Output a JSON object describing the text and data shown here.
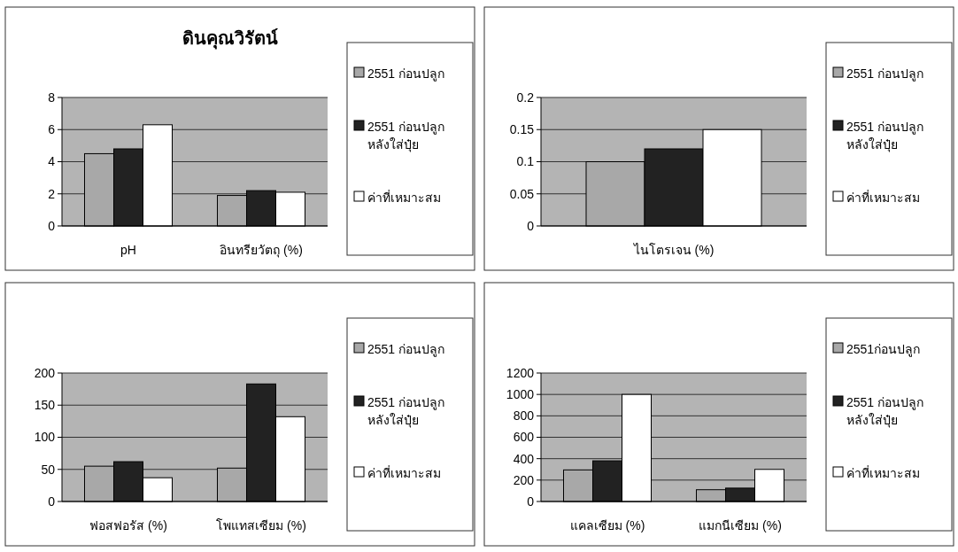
{
  "chart_data": [
    {
      "type": "bar",
      "title": "ดินคุณวิรัตน์",
      "categories": [
        "pH",
        "อินทรียวัตถุ (%)"
      ],
      "series": [
        {
          "name": "2551 ก่อนปลูก",
          "color": "#a8a8a8",
          "values": [
            4.5,
            1.9
          ]
        },
        {
          "name": "2551 ก่อนปลูก หลังใส่ปุ๋ย",
          "color": "#222222",
          "values": [
            4.8,
            2.2
          ]
        },
        {
          "name": "ค่าที่เหมาะสม",
          "color": "#ffffff",
          "values": [
            6.3,
            2.1
          ]
        }
      ],
      "ylim": [
        0,
        8
      ],
      "yticks": [
        0,
        2,
        4,
        6,
        8
      ],
      "grid": "y",
      "legend": "right"
    },
    {
      "type": "bar",
      "categories": [
        "ไนโตรเจน (%)"
      ],
      "series": [
        {
          "name": "2551 ก่อนปลูก",
          "color": "#a8a8a8",
          "values": [
            0.1
          ]
        },
        {
          "name": "2551 ก่อนปลูก หลังใส่ปุ๋ย",
          "color": "#222222",
          "values": [
            0.12
          ]
        },
        {
          "name": "ค่าที่เหมาะสม",
          "color": "#ffffff",
          "values": [
            0.15
          ]
        }
      ],
      "ylim": [
        0,
        0.2
      ],
      "yticks": [
        0,
        0.05,
        0.1,
        0.15,
        0.2
      ],
      "grid": "y",
      "legend": "right"
    },
    {
      "type": "bar",
      "categories": [
        "ฟอสฟอรัส (%)",
        "โพแทสเซียม (%)"
      ],
      "series": [
        {
          "name": "2551 ก่อนปลูก",
          "color": "#a8a8a8",
          "values": [
            55,
            52
          ]
        },
        {
          "name": "2551 ก่อนปลูก หลังใส่ปุ๋ย",
          "color": "#222222",
          "values": [
            62,
            183
          ]
        },
        {
          "name": "ค่าที่เหมาะสม",
          "color": "#ffffff",
          "values": [
            37,
            132
          ]
        }
      ],
      "ylim": [
        0,
        200
      ],
      "yticks": [
        0,
        50,
        100,
        150,
        200
      ],
      "grid": "y",
      "legend": "right"
    },
    {
      "type": "bar",
      "categories": [
        "แคลเซียม (%)",
        "แมกนีเซียม (%)"
      ],
      "series": [
        {
          "name": "2551ก่อนปลูก",
          "color": "#a8a8a8",
          "values": [
            295,
            110
          ]
        },
        {
          "name": "2551 ก่อนปลูก หลังใส่ปุ๋ย",
          "color": "#222222",
          "values": [
            380,
            125
          ]
        },
        {
          "name": "ค่าที่เหมาะสม",
          "color": "#ffffff",
          "values": [
            1000,
            300
          ]
        }
      ],
      "ylim": [
        0,
        1200
      ],
      "yticks": [
        0,
        200,
        400,
        600,
        800,
        1000,
        1200
      ],
      "grid": "y",
      "legend": "right"
    }
  ]
}
